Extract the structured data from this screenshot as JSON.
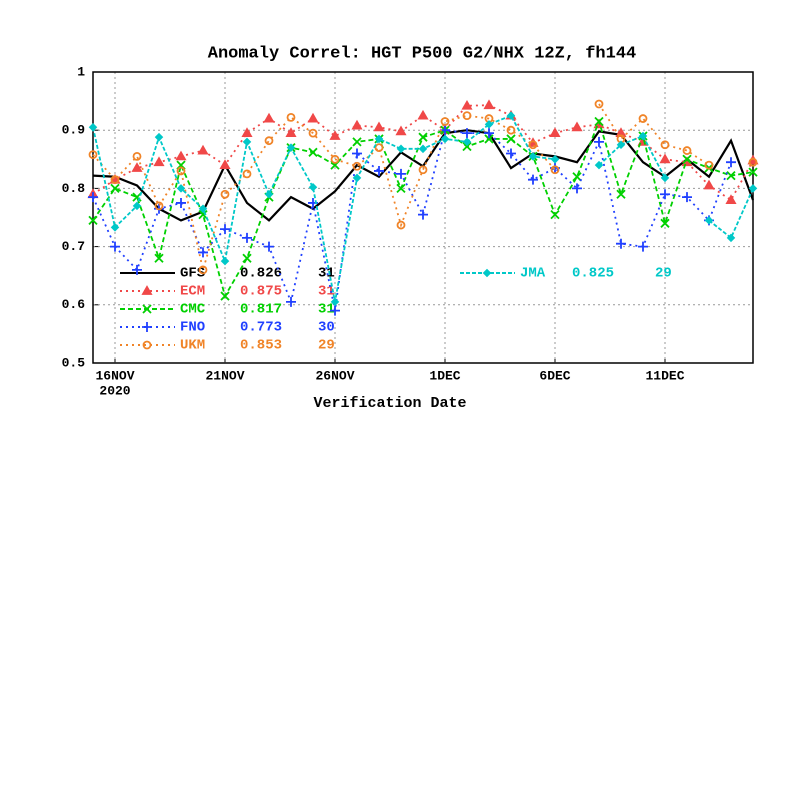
{
  "chart_data": {
    "type": "line",
    "title": "Anomaly Correl: HGT P500 G2/NHX 12Z, fh144",
    "x_label": "Verification Date",
    "x_year_label": "2020",
    "x": [
      "2020-11-15",
      "2020-11-16",
      "2020-11-17",
      "2020-11-18",
      "2020-11-19",
      "2020-11-20",
      "2020-11-21",
      "2020-11-22",
      "2020-11-23",
      "2020-11-24",
      "2020-11-25",
      "2020-11-26",
      "2020-11-27",
      "2020-11-28",
      "2020-11-29",
      "2020-11-30",
      "2020-12-01",
      "2020-12-02",
      "2020-12-03",
      "2020-12-04",
      "2020-12-05",
      "2020-12-06",
      "2020-12-07",
      "2020-12-08",
      "2020-12-09",
      "2020-12-10",
      "2020-12-11",
      "2020-12-12",
      "2020-12-13",
      "2020-12-14",
      "2020-12-15"
    ],
    "xlim": [
      "2020-11-15",
      "2020-12-15"
    ],
    "xticks": [
      {
        "value": "2020-11-16",
        "label": "16NOV"
      },
      {
        "value": "2020-11-21",
        "label": "21NOV"
      },
      {
        "value": "2020-11-26",
        "label": "26NOV"
      },
      {
        "value": "2020-12-01",
        "label": "1DEC"
      },
      {
        "value": "2020-12-06",
        "label": "6DEC"
      },
      {
        "value": "2020-12-11",
        "label": "11DEC"
      }
    ],
    "ylim": [
      0.5,
      1
    ],
    "yticks": [
      0.5,
      0.6,
      0.7,
      0.8,
      0.9,
      1
    ],
    "grid": true,
    "series": [
      {
        "name": "GFS",
        "color": "#000000",
        "score": 0.826,
        "count": 31,
        "values": [
          0.822,
          0.82,
          0.805,
          0.765,
          0.745,
          0.76,
          0.84,
          0.775,
          0.745,
          0.785,
          0.765,
          0.795,
          0.84,
          0.82,
          0.862,
          0.838,
          0.895,
          0.9,
          0.895,
          0.835,
          0.86,
          0.855,
          0.845,
          0.898,
          0.892,
          0.845,
          0.82,
          0.85,
          0.82,
          0.882,
          0.78
        ]
      },
      {
        "name": "ECM",
        "color": "#f04848",
        "score": 0.875,
        "count": 31,
        "values": [
          0.79,
          0.815,
          0.835,
          0.845,
          0.855,
          0.865,
          0.84,
          0.895,
          0.92,
          0.895,
          0.92,
          0.89,
          0.908,
          0.905,
          0.898,
          0.925,
          0.9,
          0.942,
          0.943,
          0.925,
          0.878,
          0.895,
          0.905,
          0.91,
          0.895,
          0.88,
          0.85,
          0.845,
          0.805,
          0.78,
          0.848
        ]
      },
      {
        "name": "CMC",
        "color": "#00d000",
        "score": 0.817,
        "count": 31,
        "values": [
          0.745,
          0.8,
          0.785,
          0.68,
          0.84,
          0.755,
          0.615,
          0.68,
          0.785,
          0.87,
          0.862,
          0.84,
          0.88,
          0.885,
          0.8,
          0.888,
          0.9,
          0.872,
          0.885,
          0.885,
          0.855,
          0.755,
          0.82,
          0.915,
          0.79,
          0.89,
          0.74,
          0.85,
          0.835,
          0.822,
          0.828
        ]
      },
      {
        "name": "FNO",
        "color": "#2040ff",
        "score": 0.773,
        "count": 30,
        "values": [
          0.785,
          0.7,
          0.66,
          0.765,
          0.775,
          0.69,
          0.73,
          0.715,
          0.7,
          0.605,
          0.775,
          0.59,
          0.86,
          0.83,
          0.825,
          0.755,
          0.9,
          0.895,
          0.895,
          0.86,
          0.815,
          0.835,
          0.8,
          0.88,
          0.705,
          0.7,
          0.79,
          0.785,
          0.745,
          0.845,
          null
        ]
      },
      {
        "name": "UKM",
        "color": "#f08428",
        "score": 0.853,
        "count": 29,
        "values": [
          0.858,
          0.815,
          0.855,
          0.77,
          0.83,
          0.66,
          0.79,
          0.825,
          0.882,
          0.922,
          0.895,
          0.85,
          0.838,
          0.87,
          0.737,
          0.832,
          0.915,
          0.925,
          0.92,
          0.9,
          0.875,
          0.832,
          null,
          0.945,
          0.885,
          0.92,
          0.875,
          0.865,
          0.84,
          null,
          0.845
        ]
      },
      {
        "name": "JMA",
        "color": "#00c8c8",
        "score": 0.825,
        "count": 29,
        "values": [
          0.905,
          0.733,
          0.77,
          0.888,
          0.8,
          0.765,
          0.675,
          0.88,
          0.79,
          0.87,
          0.802,
          0.605,
          0.818,
          0.885,
          0.868,
          0.868,
          0.885,
          0.88,
          0.91,
          0.925,
          0.855,
          0.85,
          null,
          0.84,
          0.875,
          0.89,
          0.818,
          null,
          0.745,
          0.715,
          0.8
        ]
      }
    ]
  }
}
